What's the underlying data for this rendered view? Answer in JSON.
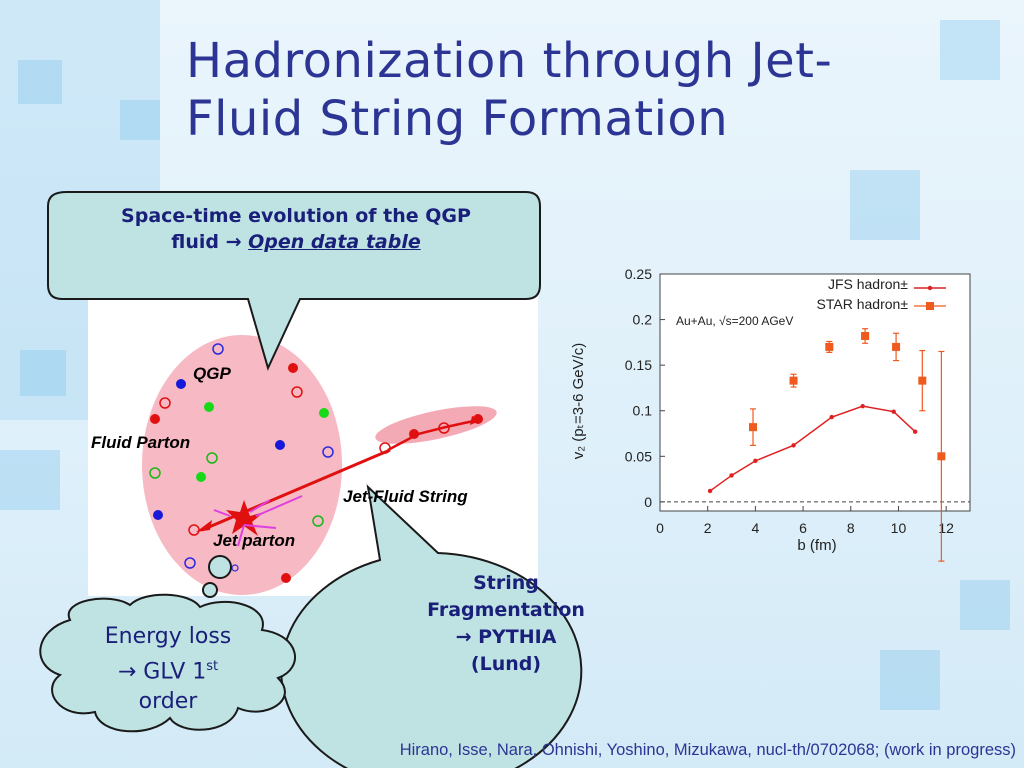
{
  "title": {
    "line1": "Hadronization through Jet-",
    "line2": "Fluid String Formation"
  },
  "callout_top": {
    "line1": "Space-time evolution of the QGP",
    "line2_prefix": "fluid → ",
    "link": "Open data table"
  },
  "callout_string": {
    "line1": "String",
    "line2": "Fragmentation",
    "line3": "→ PYTHIA",
    "line4": "(Lund)"
  },
  "callout_energy": {
    "line1": "Energy loss",
    "line2": "→ GLV 1",
    "line2_sup": "st",
    "line3": "order"
  },
  "diagram": {
    "qgp": "QGP",
    "fluid_parton": "Fluid Parton",
    "jet_fluid_string": "Jet-Fluid String",
    "jet_parton": "Jet parton"
  },
  "citation": "Hirano, Isse, Nara, Ohnishi, Yoshino, Mizukawa, nucl-th/0702068; (work in progress)",
  "colors": {
    "title": "#2c3594",
    "callout_fill": "#bfe3e3",
    "jfs": "#e02020",
    "star": "#f05a1e",
    "qgp_blob": "#f7b9c3"
  },
  "chart_data": {
    "type": "scatter",
    "xlabel": "b (fm)",
    "ylabel": "v₂ (pₜ=3-6 GeV/c)",
    "xlim": [
      0,
      13
    ],
    "ylim": [
      -0.01,
      0.25
    ],
    "xticks": [
      "0",
      "2",
      "4",
      "6",
      "8",
      "10",
      "12"
    ],
    "yticks": [
      "0",
      "0.05",
      "0.1",
      "0.15",
      "0.2",
      "0.25"
    ],
    "annotation": "Au+Au, √s=200 AGeV",
    "legend_position": "top-right",
    "series": [
      {
        "name": "JFS hadron±",
        "style": "line",
        "x": [
          2.1,
          3.0,
          4.0,
          5.6,
          7.2,
          8.5,
          9.8,
          10.7
        ],
        "y": [
          0.012,
          0.029,
          0.045,
          0.062,
          0.093,
          0.105,
          0.099,
          0.077
        ]
      },
      {
        "name": "STAR hadron±",
        "style": "errorbar",
        "x": [
          3.9,
          5.6,
          7.1,
          8.6,
          9.9,
          11.0,
          11.8
        ],
        "y": [
          0.082,
          0.133,
          0.17,
          0.182,
          0.17,
          0.133,
          0.05
        ],
        "err": [
          0.02,
          0.007,
          0.006,
          0.008,
          0.015,
          0.033,
          0.115
        ]
      }
    ]
  }
}
